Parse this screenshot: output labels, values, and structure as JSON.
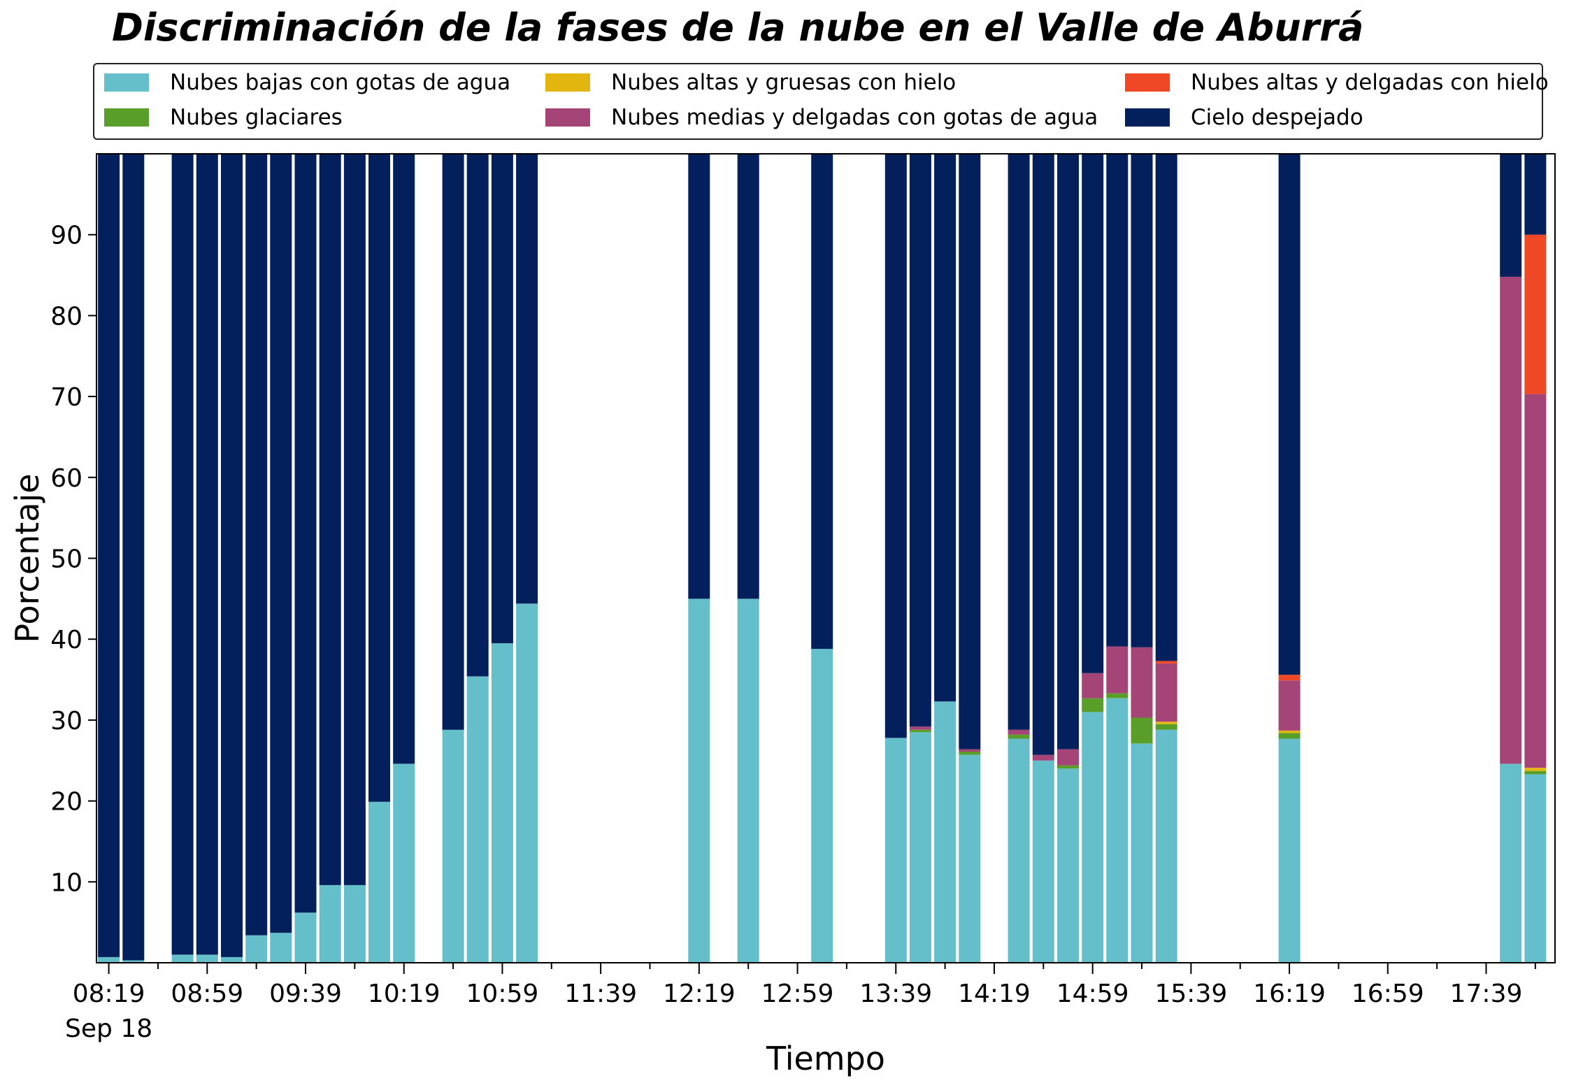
{
  "chart_data": {
    "type": "bar",
    "stacked": true,
    "title": "Discriminación de la fases de la nube en el Valle de Aburrá",
    "xlabel": "Tiempo",
    "ylabel": "Porcentaje",
    "ylim": [
      0,
      100
    ],
    "yticks": [
      10,
      20,
      30,
      40,
      50,
      60,
      70,
      80,
      90
    ],
    "xlim": [
      "2023-09-18 08:14",
      "2023-09-18 18:07"
    ],
    "xtick_times": [
      "08:19",
      "08:59",
      "09:39",
      "10:19",
      "10:59",
      "11:39",
      "12:19",
      "12:59",
      "13:39",
      "14:19",
      "14:59",
      "15:39",
      "16:19",
      "16:59",
      "17:39"
    ],
    "xtick_labels": [
      "08:19",
      "08:59",
      "09:39",
      "10:19",
      "10:59",
      "11:39",
      "12:19",
      "12:59",
      "13:39",
      "14:19",
      "14:59",
      "15:39",
      "16:19",
      "16:59",
      "17:39"
    ],
    "date_label": "Sep 18",
    "legend_position": "top",
    "grid": false,
    "x": [
      "08:19",
      "08:29",
      "08:49",
      "08:59",
      "09:09",
      "09:19",
      "09:29",
      "09:39",
      "09:49",
      "09:59",
      "10:09",
      "10:19",
      "10:39",
      "10:49",
      "10:59",
      "11:09",
      "12:19",
      "12:39",
      "13:09",
      "13:39",
      "13:49",
      "13:59",
      "14:09",
      "14:29",
      "14:39",
      "14:49",
      "14:59",
      "15:09",
      "15:19",
      "15:29",
      "16:19",
      "17:49",
      "17:59"
    ],
    "series": [
      {
        "name": "Nubes bajas con gotas de agua",
        "color": "#65bfca",
        "values": [
          0.7,
          0.3,
          1.0,
          1.0,
          0.7,
          3.4,
          3.7,
          6.2,
          9.6,
          9.6,
          19.9,
          24.6,
          28.8,
          35.4,
          39.5,
          44.4,
          45.0,
          45.0,
          38.8,
          27.8,
          28.5,
          32.3,
          25.7,
          27.7,
          25.0,
          24.0,
          31.0,
          32.7,
          27.1,
          28.8,
          27.7,
          24.6,
          23.3
        ]
      },
      {
        "name": "Nubes glaciares",
        "color": "#5a9e2a",
        "values": [
          0,
          0,
          0,
          0,
          0,
          0,
          0,
          0,
          0,
          0,
          0,
          0,
          0,
          0,
          0,
          0,
          0,
          0,
          0,
          0,
          0.3,
          0,
          0.4,
          0.5,
          0,
          0.4,
          1.7,
          0.6,
          3.2,
          0.7,
          0.7,
          0,
          0.4
        ]
      },
      {
        "name": "Nubes altas y gruesas con hielo",
        "color": "#e2b60e",
        "values": [
          0,
          0,
          0,
          0,
          0,
          0,
          0,
          0,
          0,
          0,
          0,
          0,
          0,
          0,
          0,
          0,
          0,
          0,
          0,
          0,
          0,
          0,
          0,
          0,
          0,
          0,
          0,
          0,
          0,
          0.3,
          0.3,
          0,
          0.4
        ]
      },
      {
        "name": "Nubes medias y delgadas con gotas de agua",
        "color": "#a54476",
        "values": [
          0,
          0,
          0,
          0,
          0,
          0,
          0,
          0,
          0,
          0,
          0,
          0,
          0,
          0,
          0,
          0,
          0,
          0,
          0,
          0,
          0.4,
          0,
          0.3,
          0.6,
          0.7,
          2.0,
          3.1,
          5.8,
          8.7,
          7.2,
          6.2,
          60.2,
          46.2
        ]
      },
      {
        "name": "Nubes altas y delgadas con hielo",
        "color": "#ef4826",
        "values": [
          0,
          0,
          0,
          0,
          0,
          0,
          0,
          0,
          0,
          0,
          0,
          0,
          0,
          0,
          0,
          0,
          0,
          0,
          0,
          0,
          0,
          0,
          0,
          0,
          0,
          0,
          0,
          0,
          0,
          0.3,
          0.7,
          0,
          19.7
        ]
      },
      {
        "name": "Cielo despejado",
        "color": "#031f5c",
        "values": [
          99.3,
          99.7,
          99.0,
          99.0,
          99.3,
          96.6,
          96.3,
          93.8,
          90.4,
          90.4,
          80.1,
          75.4,
          71.2,
          64.6,
          60.5,
          55.6,
          55.0,
          55.0,
          61.2,
          72.2,
          70.8,
          67.7,
          73.6,
          71.2,
          74.3,
          73.6,
          64.2,
          60.9,
          61.0,
          62.7,
          64.4,
          15.2,
          10.0
        ]
      }
    ]
  }
}
